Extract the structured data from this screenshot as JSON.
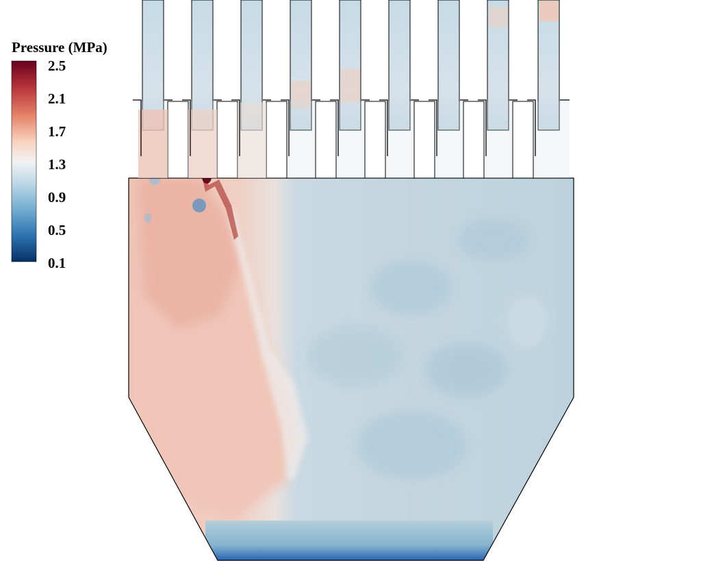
{
  "colorbar": {
    "title": "Pressure (MPa)",
    "ticks": [
      "2.5",
      "2.1",
      "1.7",
      "1.3",
      "0.9",
      "0.5",
      "0.1"
    ],
    "min": 0.1,
    "max": 2.5,
    "colormap": [
      "#68001f",
      "#b7333a",
      "#e58267",
      "#f9d1be",
      "#f2f2f2",
      "#c2dbe8",
      "#78b1d2",
      "#2d73b1",
      "#063163"
    ]
  },
  "field_colors": {
    "high_region": "#efc5b7",
    "mid_region": "#f1dad3",
    "low_region": "#bcd1db",
    "outlet": "#1f5fb0"
  }
}
